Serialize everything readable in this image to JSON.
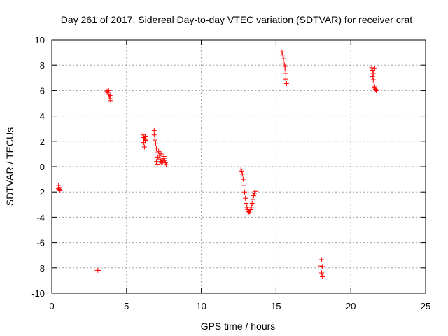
{
  "chart_data": {
    "type": "scatter",
    "title": "Day 261 of 2017, Sidereal Day-to-day VTEC variation (SDTVAR) for receiver crat",
    "xlabel": "GPS time / hours",
    "ylabel": "SDTVAR / TECUs",
    "xlim": [
      0,
      25
    ],
    "ylim": [
      -10,
      10
    ],
    "xticks": [
      0,
      5,
      10,
      15,
      20,
      25
    ],
    "yticks": [
      -10,
      -8,
      -6,
      -4,
      -2,
      0,
      2,
      4,
      6,
      8,
      10
    ],
    "grid": true,
    "marker": "+",
    "color": "#ff0000",
    "series": [
      {
        "name": "SDTVAR",
        "points": [
          [
            0.45,
            -1.5
          ],
          [
            0.5,
            -1.65
          ],
          [
            0.5,
            -1.8
          ],
          [
            0.55,
            -1.9
          ],
          [
            0.45,
            -1.75
          ],
          [
            3.05,
            -8.2
          ],
          [
            3.15,
            -8.2
          ],
          [
            3.7,
            5.95
          ],
          [
            3.75,
            5.85
          ],
          [
            3.8,
            5.7
          ],
          [
            3.85,
            5.5
          ],
          [
            3.9,
            5.35
          ],
          [
            3.95,
            5.2
          ],
          [
            3.8,
            6.0
          ],
          [
            3.9,
            5.6
          ],
          [
            6.1,
            2.5
          ],
          [
            6.15,
            2.3
          ],
          [
            6.2,
            2.2
          ],
          [
            6.25,
            2.05
          ],
          [
            6.15,
            1.9
          ],
          [
            6.3,
            2.1
          ],
          [
            6.2,
            1.55
          ],
          [
            6.25,
            2.4
          ],
          [
            6.85,
            2.85
          ],
          [
            6.85,
            2.5
          ],
          [
            6.9,
            2.1
          ],
          [
            6.95,
            1.8
          ],
          [
            7.0,
            1.45
          ],
          [
            7.05,
            1.1
          ],
          [
            7.1,
            0.75
          ],
          [
            7.0,
            0.4
          ],
          [
            7.05,
            0.2
          ],
          [
            7.15,
            1.2
          ],
          [
            7.2,
            0.9
          ],
          [
            7.25,
            0.6
          ],
          [
            7.3,
            0.4
          ],
          [
            7.35,
            0.3
          ],
          [
            7.4,
            0.35
          ],
          [
            7.45,
            0.5
          ],
          [
            7.5,
            0.65
          ],
          [
            7.55,
            0.5
          ],
          [
            7.6,
            0.3
          ],
          [
            7.65,
            0.15
          ],
          [
            7.5,
            0.8
          ],
          [
            7.3,
            1.0
          ],
          [
            12.65,
            -0.2
          ],
          [
            12.7,
            -0.35
          ],
          [
            12.75,
            -0.6
          ],
          [
            12.8,
            -1.0
          ],
          [
            12.85,
            -1.5
          ],
          [
            12.9,
            -2.0
          ],
          [
            12.95,
            -2.5
          ],
          [
            13.0,
            -2.9
          ],
          [
            13.05,
            -3.2
          ],
          [
            13.1,
            -3.4
          ],
          [
            13.15,
            -3.55
          ],
          [
            13.2,
            -3.6
          ],
          [
            13.25,
            -3.5
          ],
          [
            13.3,
            -3.4
          ],
          [
            13.35,
            -3.2
          ],
          [
            13.4,
            -2.9
          ],
          [
            13.45,
            -2.6
          ],
          [
            13.5,
            -2.3
          ],
          [
            13.55,
            -2.1
          ],
          [
            13.6,
            -1.95
          ],
          [
            15.4,
            9.05
          ],
          [
            15.45,
            8.8
          ],
          [
            15.5,
            8.5
          ],
          [
            15.55,
            8.1
          ],
          [
            15.6,
            7.7
          ],
          [
            15.65,
            7.35
          ],
          [
            15.65,
            6.9
          ],
          [
            15.7,
            6.55
          ],
          [
            15.6,
            7.9
          ],
          [
            18.05,
            -7.35
          ],
          [
            18.0,
            -7.85
          ],
          [
            18.1,
            -7.9
          ],
          [
            18.05,
            -8.4
          ],
          [
            18.1,
            -8.7
          ],
          [
            21.4,
            7.8
          ],
          [
            21.45,
            7.6
          ],
          [
            21.5,
            7.35
          ],
          [
            21.45,
            7.1
          ],
          [
            21.5,
            6.85
          ],
          [
            21.55,
            6.6
          ],
          [
            21.6,
            6.3
          ],
          [
            21.65,
            6.1
          ],
          [
            21.7,
            6.0
          ],
          [
            21.6,
            7.75
          ],
          [
            21.55,
            6.2
          ]
        ]
      }
    ]
  }
}
